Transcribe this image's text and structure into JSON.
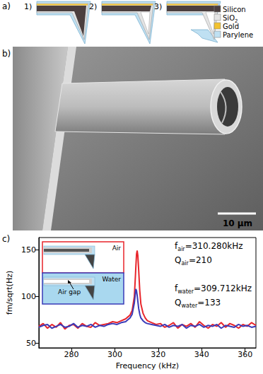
{
  "panel_a": {
    "label": "a)",
    "steps": [
      "1)",
      "2)",
      "3)"
    ],
    "legend": [
      {
        "name": "Silicon",
        "color": "#4b3f3f"
      },
      {
        "name": "SiO",
        "sub": "2",
        "color": "#e4e4e4"
      },
      {
        "name": "Gold",
        "color": "#f2c230"
      },
      {
        "name": "Parylene",
        "color": "#bfe0f2"
      }
    ]
  },
  "panel_b": {
    "label": "b)",
    "scale_bar": "10 µm"
  },
  "chart_data": {
    "type": "line",
    "label": "c)",
    "xlabel": "Frequency (kHz)",
    "ylabel": "fm/sqrt(Hz)",
    "x": [
      265,
      267,
      269,
      271,
      273,
      275,
      277,
      279,
      281,
      283,
      285,
      287,
      289,
      291,
      293,
      295,
      297,
      299,
      301,
      303,
      305,
      306,
      307,
      308,
      309,
      309.5,
      309.7,
      310,
      310.3,
      310.6,
      311,
      311.5,
      312,
      313,
      314,
      315,
      317,
      319,
      321,
      323,
      325,
      327,
      329,
      331,
      333,
      335,
      337,
      339,
      341,
      343,
      345,
      347,
      349,
      351,
      353,
      355,
      357,
      359,
      361,
      363,
      365
    ],
    "series": [
      {
        "name": "Air",
        "color": "#e8252b",
        "values": [
          68,
          71,
          66,
          70,
          67,
          72,
          65,
          69,
          70,
          66,
          71,
          68,
          67,
          72,
          69,
          70,
          71,
          73,
          72,
          74,
          76,
          78,
          80,
          85,
          100,
          122,
          132,
          145,
          149,
          144,
          128,
          106,
          92,
          82,
          77,
          74,
          72,
          70,
          71,
          67,
          69,
          72,
          66,
          70,
          68,
          71,
          67,
          73,
          69,
          66,
          70,
          68,
          72,
          67,
          71,
          69,
          66,
          70,
          68,
          72,
          69
        ]
      },
      {
        "name": "Water",
        "color": "#3a3ab8",
        "values": [
          67,
          69,
          70,
          66,
          68,
          70,
          67,
          68,
          71,
          67,
          69,
          68,
          70,
          67,
          69,
          68,
          70,
          71,
          70,
          72,
          73,
          75,
          77,
          81,
          93,
          104,
          108,
          106,
          101,
          95,
          87,
          81,
          77,
          74,
          72,
          71,
          70,
          69,
          68,
          70,
          67,
          69,
          68,
          70,
          66,
          69,
          68,
          70,
          67,
          69,
          68,
          70,
          66,
          69,
          68,
          67,
          70,
          68,
          69,
          67,
          68
        ]
      }
    ],
    "xlim": [
      265,
      365
    ],
    "ylim": [
      45,
      163
    ],
    "xticks": [
      280,
      300,
      320,
      340,
      360
    ],
    "yticks": [
      50,
      100,
      150
    ],
    "grid": false,
    "legend": "upper left",
    "inset_note": "Air gap",
    "annotations": [
      {
        "text": "f",
        "sub": "air",
        "rest": "=310.280kHz"
      },
      {
        "text": "Q",
        "sub": "air",
        "rest": "=210"
      },
      {
        "text": "f",
        "sub": "water",
        "rest": "=309.712kHz"
      },
      {
        "text": "Q",
        "sub": "water",
        "rest": "=133"
      }
    ]
  }
}
